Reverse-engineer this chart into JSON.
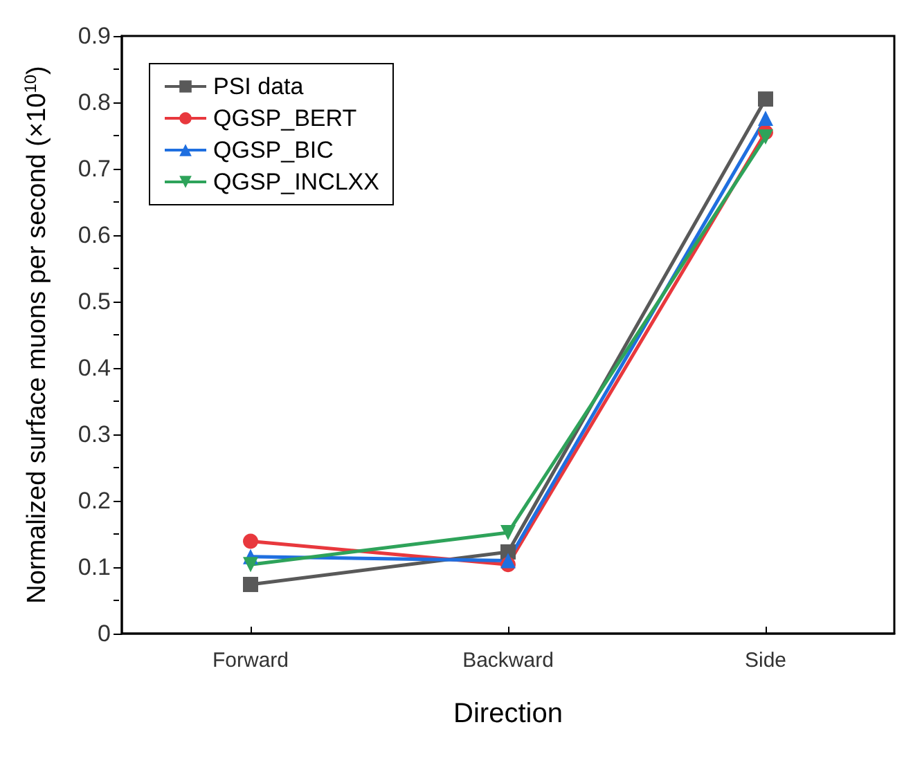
{
  "chart_data": {
    "type": "line",
    "xlabel": "Direction",
    "ylabel": "Normalized surface muons per second (×10$^{10}$)",
    "categories": [
      "Forward",
      "Backward",
      "Side"
    ],
    "series": [
      {
        "name": "PSI data",
        "color": "#595959",
        "marker": "square",
        "values": [
          0.074,
          0.123,
          0.805
        ]
      },
      {
        "name": "QGSP_BERT",
        "color": "#e8383d",
        "marker": "circle",
        "values": [
          0.139,
          0.104,
          0.755
        ]
      },
      {
        "name": "QGSP_BIC",
        "color": "#1f6fe0",
        "marker": "triangle",
        "values": [
          0.116,
          0.11,
          0.776
        ]
      },
      {
        "name": "QGSP_INCLXX",
        "color": "#2ea35a",
        "marker": "triangle_down",
        "values": [
          0.104,
          0.152,
          0.748
        ]
      }
    ],
    "ylim": [
      0,
      0.9
    ],
    "yticks": [
      0,
      0.1,
      0.2,
      0.3,
      0.4,
      0.5,
      0.6,
      0.7,
      0.8,
      0.9
    ],
    "grid": false,
    "legend": "top left",
    "line_style": "solid"
  }
}
